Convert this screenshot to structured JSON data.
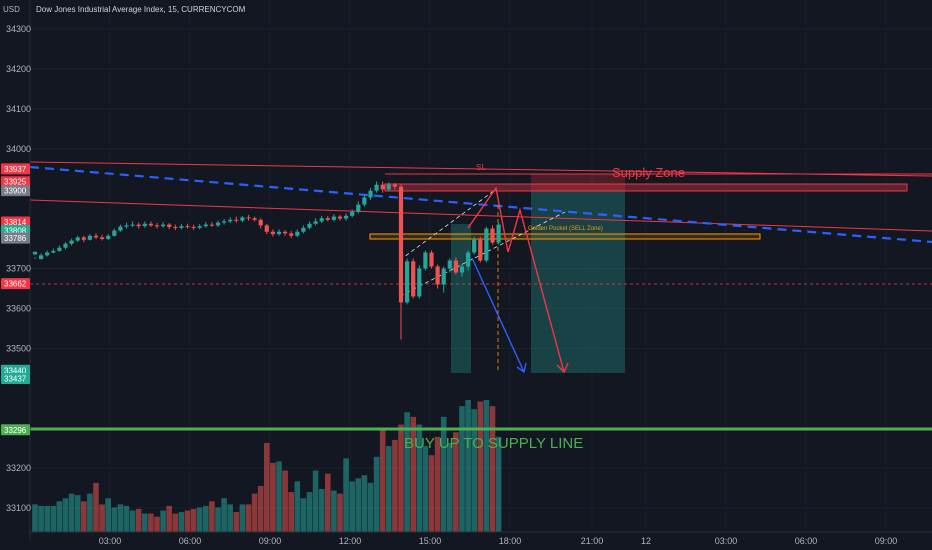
{
  "header": {
    "currency": "USD",
    "title": "Dow Jones Industrial Average Index, 15, CURRENCYCOM"
  },
  "chart_data": {
    "type": "candlestick",
    "y_axis": {
      "min": 33030,
      "max": 34330,
      "ticks": [
        34300,
        34200,
        34100,
        34000,
        33700,
        33600,
        33500,
        33200,
        33100
      ]
    },
    "x_axis": {
      "labels": [
        "03:00",
        "06:00",
        "09:00",
        "12:00",
        "15:00",
        "18:00",
        "21:00",
        "12",
        "03:00",
        "06:00",
        "09:00"
      ]
    },
    "price_tags": [
      {
        "label": "33937",
        "value": 33937,
        "color": "#f23645"
      },
      {
        "label": "33925",
        "value": 33925,
        "color": "#f23645"
      },
      {
        "label": "33900",
        "value": 33900,
        "color": "#787b86"
      },
      {
        "label": "33814",
        "value": 33814,
        "color": "#f23645"
      },
      {
        "label": "33808",
        "value": 33808,
        "color": "#22ab94"
      },
      {
        "label": "33786",
        "value": 33786,
        "color": "#787b86"
      },
      {
        "label": "33662",
        "value": 33662,
        "color": "#f23645"
      },
      {
        "label": "33440",
        "value": 33440,
        "color": "#22ab94"
      },
      {
        "label": "33437",
        "value": 33437,
        "color": "#22ab94"
      },
      {
        "label": "33296",
        "value": 33296,
        "color": "#4caf50"
      }
    ],
    "annotations": {
      "supply_zone": "Supply Zone",
      "sl": "SL",
      "golden_pocket": "Golden Pocket (SELL Zone)",
      "buy_text": "BUY UP TO SUPPLY LINE"
    },
    "colors": {
      "up": "#26a69a",
      "down": "#ef5350",
      "supply": "#f23645",
      "buy": "#4caf50",
      "trend": "#2962ff",
      "orange": "#ff9800"
    },
    "candles": [
      [
        33735,
        33742,
        33728,
        33724
      ],
      [
        33724,
        33733,
        33738,
        33722
      ],
      [
        33733,
        33740,
        33745,
        33730
      ],
      [
        33740,
        33744,
        33750,
        33738
      ],
      [
        33744,
        33752,
        33758,
        33742
      ],
      [
        33752,
        33762,
        33766,
        33748
      ],
      [
        33762,
        33770,
        33775,
        33758
      ],
      [
        33770,
        33778,
        33782,
        33766
      ],
      [
        33778,
        33772,
        33782,
        33766
      ],
      [
        33772,
        33782,
        33786,
        33770
      ],
      [
        33782,
        33778,
        33788,
        33774
      ],
      [
        33778,
        33774,
        33784,
        33770
      ],
      [
        33774,
        33782,
        33786,
        33771
      ],
      [
        33782,
        33795,
        33800,
        33780
      ],
      [
        33795,
        33805,
        33810,
        33792
      ],
      [
        33805,
        33808,
        33815,
        33800
      ],
      [
        33808,
        33810,
        33818,
        33804
      ],
      [
        33810,
        33806,
        33815,
        33800
      ],
      [
        33806,
        33812,
        33818,
        33802
      ],
      [
        33812,
        33808,
        33818,
        33804
      ],
      [
        33808,
        33806,
        33814,
        33800
      ],
      [
        33806,
        33810,
        33816,
        33802
      ],
      [
        33810,
        33804,
        33814,
        33798
      ],
      [
        33804,
        33802,
        33810,
        33796
      ],
      [
        33802,
        33806,
        33812,
        33798
      ],
      [
        33806,
        33804,
        33812,
        33800
      ],
      [
        33804,
        33802,
        33810,
        33797
      ],
      [
        33802,
        33806,
        33812,
        33798
      ],
      [
        33806,
        33810,
        33816,
        33802
      ],
      [
        33810,
        33808,
        33816,
        33804
      ],
      [
        33808,
        33815,
        33820,
        33804
      ],
      [
        33815,
        33818,
        33824,
        33810
      ],
      [
        33818,
        33822,
        33828,
        33814
      ],
      [
        33822,
        33820,
        33830,
        33815
      ],
      [
        33820,
        33828,
        33832,
        33816
      ],
      [
        33828,
        33826,
        33834,
        33820
      ],
      [
        33826,
        33822,
        33830,
        33818
      ],
      [
        33822,
        33808,
        33826,
        33800
      ],
      [
        33808,
        33792,
        33812,
        33786
      ],
      [
        33792,
        33786,
        33798,
        33780
      ],
      [
        33786,
        33792,
        33798,
        33782
      ],
      [
        33792,
        33788,
        33796,
        33782
      ],
      [
        33788,
        33782,
        33794,
        33776
      ],
      [
        33782,
        33792,
        33798,
        33778
      ],
      [
        33792,
        33802,
        33808,
        33788
      ],
      [
        33802,
        33812,
        33818,
        33798
      ],
      [
        33812,
        33818,
        33826,
        33808
      ],
      [
        33818,
        33826,
        33832,
        33814
      ],
      [
        33826,
        33822,
        33832,
        33818
      ],
      [
        33822,
        33830,
        33836,
        33818
      ],
      [
        33830,
        33825,
        33834,
        33820
      ],
      [
        33825,
        33832,
        33838,
        33820
      ],
      [
        33832,
        33842,
        33848,
        33828
      ],
      [
        33842,
        33860,
        33868,
        33838
      ],
      [
        33860,
        33878,
        33885,
        33855
      ],
      [
        33878,
        33895,
        33902,
        33872
      ],
      [
        33895,
        33910,
        33918,
        33890
      ],
      [
        33910,
        33898,
        33918,
        33890
      ],
      [
        33898,
        33910,
        33916,
        33893
      ],
      [
        33910,
        33905,
        33914,
        33898
      ],
      [
        33905,
        33615,
        33910,
        33522
      ],
      [
        33615,
        33718,
        33725,
        33610
      ],
      [
        33718,
        33630,
        33725,
        33625
      ],
      [
        33630,
        33700,
        33708,
        33625
      ],
      [
        33700,
        33740,
        33745,
        33695
      ],
      [
        33740,
        33705,
        33745,
        33700
      ],
      [
        33705,
        33660,
        33710,
        33650
      ],
      [
        33660,
        33700,
        33705,
        33640
      ],
      [
        33700,
        33720,
        33725,
        33690
      ],
      [
        33720,
        33690,
        33728,
        33685
      ],
      [
        33690,
        33705,
        33712,
        33680
      ],
      [
        33705,
        33740,
        33745,
        33695
      ],
      [
        33740,
        33775,
        33780,
        33735
      ],
      [
        33775,
        33720,
        33780,
        33715
      ],
      [
        33720,
        33800,
        33805,
        33715
      ],
      [
        33800,
        33765,
        33808,
        33760
      ],
      [
        33765,
        33810,
        33815,
        33760
      ]
    ],
    "volumes": [
      18,
      17,
      17,
      17,
      20,
      22,
      25,
      24,
      20,
      25,
      32,
      18,
      22,
      16,
      18,
      17,
      14,
      15,
      12,
      12,
      10,
      14,
      17,
      12,
      13,
      14,
      15,
      16,
      17,
      20,
      16,
      22,
      18,
      13,
      18,
      18,
      25,
      30,
      58,
      45,
      46,
      40,
      26,
      33,
      22,
      26,
      40,
      28,
      38,
      27,
      25,
      48,
      33,
      35,
      37,
      32,
      49,
      68,
      56,
      60,
      70,
      78,
      75,
      70,
      56,
      50,
      62,
      75,
      58,
      65,
      82,
      86,
      80,
      85,
      86,
      82,
      62
    ]
  }
}
